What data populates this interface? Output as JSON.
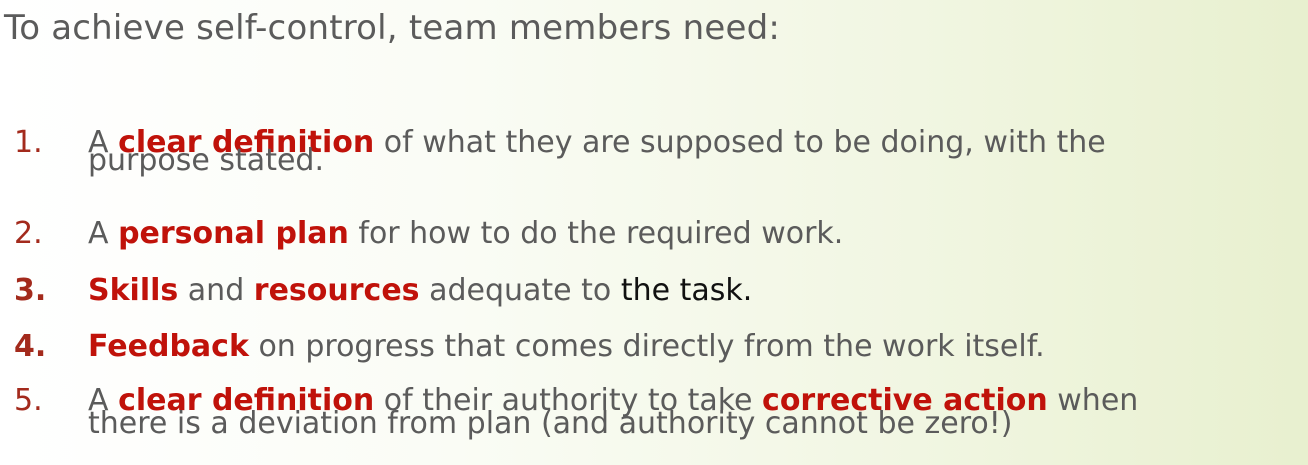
{
  "heading": "To achieve self-control, team members need:",
  "items": [
    {
      "number": "1.",
      "parts": [
        "A ",
        "clear definition",
        " of what they are supposed to be doing, with the"
      ],
      "line2": "purpose stated."
    },
    {
      "number": "2.",
      "parts": [
        "A ",
        "personal plan",
        " for how to do the required work."
      ]
    },
    {
      "number": "3.",
      "parts": [
        "Skills",
        " and ",
        "resources",
        " adequate to ",
        "the task."
      ]
    },
    {
      "number": "4.",
      "parts": [
        "Feedback",
        " on progress that comes directly from the work itself."
      ]
    },
    {
      "number": "5.",
      "parts": [
        "A ",
        "clear definition",
        " of their authority to take ",
        "corrective action",
        " when"
      ],
      "line2": "there is a deviation from plan (and authority cannot be zero!)"
    }
  ],
  "colors": {
    "body_text": "#5b5b5b",
    "emphasis": "#c0120a",
    "number": "#a32a1c"
  }
}
